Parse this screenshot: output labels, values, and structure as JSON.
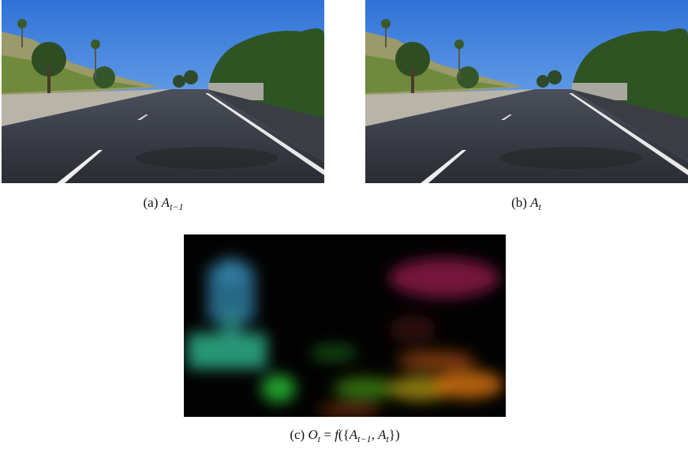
{
  "figure": {
    "panels": [
      {
        "label": "(a)",
        "math": [
          {
            "text": "A"
          },
          {
            "sub": "t−1"
          }
        ]
      },
      {
        "label": "(b)",
        "math": [
          {
            "text": "A"
          },
          {
            "sub": "t"
          }
        ]
      },
      {
        "label": "(c)",
        "math": [
          {
            "text": "O"
          },
          {
            "sub": "t"
          },
          {
            "plain": " = "
          },
          {
            "text": "f"
          },
          {
            "plain": "({"
          },
          {
            "text": "A"
          },
          {
            "sub": "t−1"
          },
          {
            "plain": ", "
          },
          {
            "text": "A"
          },
          {
            "sub": "t"
          },
          {
            "plain": "})"
          }
        ]
      }
    ]
  }
}
